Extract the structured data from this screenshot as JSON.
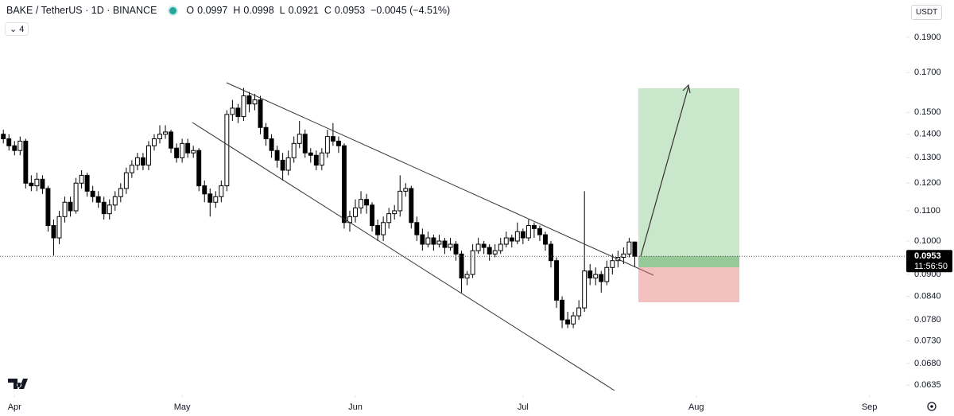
{
  "header": {
    "symbol": "BAKE / TetherUS · 1D · BINANCE",
    "ohlc_labels": [
      "O",
      "H",
      "L",
      "C"
    ],
    "change": "−0.0045 (−4.51%)",
    "indicator_count": 4,
    "currency": "USDT",
    "countdown": "11:56:50"
  },
  "chart_data": {
    "type": "candlestick",
    "log_scale": true,
    "up_color": "#ffffff",
    "down_color": "#000000",
    "border_color": "#000000",
    "xlim": [
      88.4,
      250.6
    ],
    "xticks": [
      {
        "value": 91,
        "label": "Apr"
      },
      {
        "value": 121,
        "label": "May"
      },
      {
        "value": 152,
        "label": "Jun"
      },
      {
        "value": 182,
        "label": "Jul"
      },
      {
        "value": 213,
        "label": "Aug"
      },
      {
        "value": 244,
        "label": "Sep"
      }
    ],
    "ylim": [
      0.0615,
      0.2137
    ],
    "yticks": [
      {
        "value": 0.19,
        "label": "0.1900"
      },
      {
        "value": 0.17,
        "label": "0.1700"
      },
      {
        "value": 0.15,
        "label": "0.1500"
      },
      {
        "value": 0.14,
        "label": "0.1400"
      },
      {
        "value": 0.13,
        "label": "0.1300"
      },
      {
        "value": 0.12,
        "label": "0.1200"
      },
      {
        "value": 0.11,
        "label": "0.1100"
      },
      {
        "value": 0.1,
        "label": "0.1000"
      },
      {
        "value": 0.09,
        "label": "0.0900"
      },
      {
        "value": 0.084,
        "label": "0.0840"
      },
      {
        "value": 0.078,
        "label": "0.0780"
      },
      {
        "value": 0.073,
        "label": "0.0730"
      },
      {
        "value": 0.068,
        "label": "0.0680"
      },
      {
        "value": 0.0635,
        "label": "0.0635"
      }
    ],
    "x": [
      89,
      90,
      91,
      92,
      93,
      94,
      95,
      96,
      97,
      98,
      99,
      100,
      101,
      102,
      103,
      104,
      105,
      106,
      107,
      108,
      109,
      110,
      111,
      112,
      113,
      114,
      115,
      116,
      117,
      118,
      119,
      120,
      121,
      122,
      123,
      124,
      125,
      126,
      127,
      128,
      129,
      130,
      131,
      132,
      133,
      134,
      135,
      136,
      137,
      138,
      139,
      140,
      141,
      142,
      143,
      144,
      145,
      146,
      147,
      148,
      149,
      150,
      151,
      152,
      153,
      154,
      155,
      156,
      157,
      158,
      159,
      160,
      161,
      162,
      163,
      164,
      165,
      166,
      167,
      168,
      169,
      170,
      171,
      172,
      173,
      174,
      175,
      176,
      177,
      178,
      179,
      180,
      181,
      182,
      183,
      184,
      185,
      186,
      187,
      188,
      189,
      190,
      191,
      192,
      193,
      194,
      195,
      196,
      197,
      198,
      199,
      200,
      201,
      202
    ],
    "open": [
      0.14,
      0.138,
      0.135,
      0.133,
      0.137,
      0.12,
      0.119,
      0.1215,
      0.118,
      0.105,
      0.101,
      0.108,
      0.113,
      0.11,
      0.12,
      0.123,
      0.117,
      0.115,
      0.113,
      0.109,
      0.112,
      0.115,
      0.118,
      0.124,
      0.127,
      0.13,
      0.127,
      0.135,
      0.138,
      0.14,
      0.141,
      0.134,
      0.13,
      0.136,
      0.132,
      0.133,
      0.119,
      0.116,
      0.113,
      0.115,
      0.119,
      0.149,
      0.152,
      0.148,
      0.158,
      0.154,
      0.156,
      0.143,
      0.138,
      0.133,
      0.129,
      0.125,
      0.13,
      0.136,
      0.14,
      0.132,
      0.131,
      0.127,
      0.132,
      0.139,
      0.137,
      0.135,
      0.106,
      0.108,
      0.111,
      0.114,
      0.112,
      0.105,
      0.102,
      0.106,
      0.109,
      0.11,
      0.117,
      0.118,
      0.106,
      0.102,
      0.099,
      0.101,
      0.099,
      0.1,
      0.098,
      0.099,
      0.096,
      0.089,
      0.09,
      0.097,
      0.099,
      0.098,
      0.096,
      0.097,
      0.099,
      0.101,
      0.1,
      0.103,
      0.101,
      0.105,
      0.104,
      0.102,
      0.099,
      0.094,
      0.083,
      0.078,
      0.077,
      0.079,
      0.081,
      0.091,
      0.089,
      0.09,
      0.088,
      0.092,
      0.094,
      0.095,
      0.096,
      0.0997
    ],
    "high": [
      0.142,
      0.14,
      0.137,
      0.139,
      0.138,
      0.123,
      0.124,
      0.123,
      0.119,
      0.107,
      0.11,
      0.115,
      0.115,
      0.122,
      0.125,
      0.124,
      0.119,
      0.117,
      0.115,
      0.114,
      0.117,
      0.12,
      0.126,
      0.129,
      0.132,
      0.132,
      0.137,
      0.14,
      0.144,
      0.144,
      0.142,
      0.136,
      0.138,
      0.138,
      0.135,
      0.134,
      0.121,
      0.118,
      0.117,
      0.121,
      0.151,
      0.156,
      0.154,
      0.162,
      0.16,
      0.159,
      0.158,
      0.145,
      0.14,
      0.135,
      0.132,
      0.133,
      0.139,
      0.146,
      0.142,
      0.134,
      0.133,
      0.134,
      0.142,
      0.145,
      0.139,
      0.136,
      0.11,
      0.114,
      0.117,
      0.116,
      0.113,
      0.107,
      0.108,
      0.111,
      0.112,
      0.123,
      0.12,
      0.119,
      0.108,
      0.104,
      0.103,
      0.102,
      0.102,
      0.101,
      0.101,
      0.1,
      0.097,
      0.091,
      0.099,
      0.101,
      0.1,
      0.099,
      0.099,
      0.101,
      0.103,
      0.102,
      0.106,
      0.104,
      0.107,
      0.106,
      0.105,
      0.103,
      0.1,
      0.095,
      0.084,
      0.08,
      0.08,
      0.083,
      0.117,
      0.093,
      0.092,
      0.091,
      0.094,
      0.096,
      0.097,
      0.098,
      0.101,
      0.0998
    ],
    "low": [
      0.136,
      0.133,
      0.131,
      0.131,
      0.118,
      0.117,
      0.117,
      0.116,
      0.103,
      0.0955,
      0.099,
      0.106,
      0.108,
      0.109,
      0.118,
      0.115,
      0.113,
      0.111,
      0.107,
      0.107,
      0.11,
      0.113,
      0.116,
      0.122,
      0.125,
      0.125,
      0.125,
      0.133,
      0.136,
      0.138,
      0.132,
      0.128,
      0.128,
      0.13,
      0.13,
      0.117,
      0.113,
      0.108,
      0.111,
      0.113,
      0.117,
      0.146,
      0.145,
      0.146,
      0.15,
      0.151,
      0.14,
      0.135,
      0.13,
      0.126,
      0.121,
      0.123,
      0.128,
      0.134,
      0.13,
      0.128,
      0.125,
      0.125,
      0.13,
      0.135,
      0.132,
      0.104,
      0.103,
      0.106,
      0.109,
      0.109,
      0.103,
      0.1,
      0.1,
      0.104,
      0.107,
      0.108,
      0.115,
      0.104,
      0.1,
      0.097,
      0.098,
      0.097,
      0.098,
      0.096,
      0.097,
      0.094,
      0.085,
      0.087,
      0.089,
      0.096,
      0.096,
      0.094,
      0.095,
      0.096,
      0.098,
      0.098,
      0.099,
      0.099,
      0.1,
      0.101,
      0.1,
      0.097,
      0.092,
      0.081,
      0.076,
      0.076,
      0.076,
      0.078,
      0.08,
      0.087,
      0.087,
      0.085,
      0.087,
      0.09,
      0.092,
      0.093,
      0.095,
      0.0921
    ],
    "close": [
      0.138,
      0.135,
      0.133,
      0.137,
      0.12,
      0.119,
      0.1215,
      0.118,
      0.105,
      0.101,
      0.108,
      0.113,
      0.11,
      0.12,
      0.123,
      0.117,
      0.115,
      0.113,
      0.109,
      0.112,
      0.115,
      0.118,
      0.124,
      0.127,
      0.13,
      0.127,
      0.135,
      0.138,
      0.14,
      0.141,
      0.134,
      0.13,
      0.136,
      0.132,
      0.133,
      0.119,
      0.116,
      0.113,
      0.115,
      0.119,
      0.149,
      0.152,
      0.148,
      0.158,
      0.154,
      0.156,
      0.143,
      0.138,
      0.133,
      0.129,
      0.125,
      0.13,
      0.136,
      0.14,
      0.132,
      0.131,
      0.127,
      0.132,
      0.139,
      0.137,
      0.135,
      0.106,
      0.108,
      0.111,
      0.114,
      0.112,
      0.105,
      0.102,
      0.106,
      0.109,
      0.11,
      0.117,
      0.118,
      0.106,
      0.102,
      0.099,
      0.101,
      0.099,
      0.1,
      0.098,
      0.099,
      0.096,
      0.089,
      0.09,
      0.097,
      0.099,
      0.098,
      0.096,
      0.097,
      0.099,
      0.101,
      0.1,
      0.103,
      0.101,
      0.105,
      0.104,
      0.102,
      0.099,
      0.094,
      0.083,
      0.078,
      0.077,
      0.079,
      0.081,
      0.091,
      0.089,
      0.09,
      0.088,
      0.092,
      0.094,
      0.095,
      0.096,
      0.0997,
      0.0953
    ]
  }
}
